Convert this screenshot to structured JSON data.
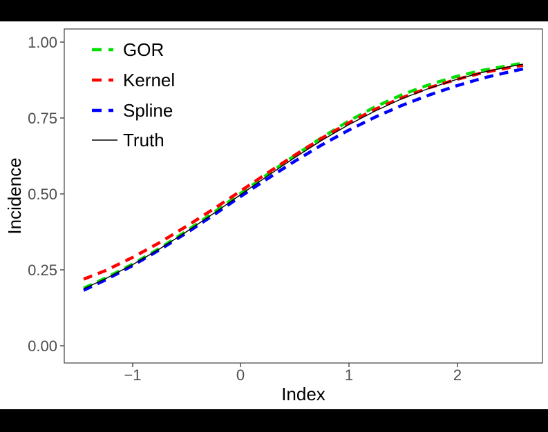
{
  "figure": {
    "background_color": "#ffffff",
    "letterbox_color": "#000000",
    "panel_border_color": "#404040",
    "tick_label_color": "#4d4d4d",
    "tick_mark_color": "#4d4d4d",
    "axis_title_color": "#000000"
  },
  "legend": {
    "position": "top-left-inside",
    "items": [
      {
        "label": "GOR",
        "color": "#00E000",
        "line_style": "dashed",
        "line_width": 4.5
      },
      {
        "label": "Kernel",
        "color": "#FF0000",
        "line_style": "dashed",
        "line_width": 4.5
      },
      {
        "label": "Spline",
        "color": "#0000FF",
        "line_style": "dashed",
        "line_width": 4.5
      },
      {
        "label": "Truth",
        "color": "#000000",
        "line_style": "solid",
        "line_width": 1.4
      }
    ]
  },
  "chart_data": {
    "type": "line",
    "title": "",
    "xlabel": "Index",
    "ylabel": "Incidence",
    "xlim": [
      -1.63,
      2.8
    ],
    "ylim": [
      -0.055,
      1.048
    ],
    "grid": "off",
    "legend_position": "top-left-inside",
    "x_ticks": [
      {
        "value": -1,
        "label": "−1"
      },
      {
        "value": 0,
        "label": "0"
      },
      {
        "value": 1,
        "label": "1"
      },
      {
        "value": 2,
        "label": "2"
      }
    ],
    "y_ticks": [
      {
        "value": 0.0,
        "label": "0.00"
      },
      {
        "value": 0.25,
        "label": "0.25"
      },
      {
        "value": 0.5,
        "label": "0.50"
      },
      {
        "value": 0.75,
        "label": "0.75"
      },
      {
        "value": 1.0,
        "label": "1.00"
      }
    ],
    "x": [
      -1.45,
      -1.25,
      -1.0,
      -0.75,
      -0.5,
      -0.25,
      0.0,
      0.25,
      0.5,
      0.75,
      1.0,
      1.25,
      1.5,
      1.75,
      2.0,
      2.25,
      2.5,
      2.62
    ],
    "series": [
      {
        "name": "GOR",
        "color": "#00E000",
        "dash": "dashed",
        "line_width": 4.5,
        "values": [
          0.192,
          0.225,
          0.271,
          0.323,
          0.38,
          0.441,
          0.504,
          0.567,
          0.629,
          0.688,
          0.743,
          0.791,
          0.831,
          0.864,
          0.891,
          0.912,
          0.928,
          0.935
        ]
      },
      {
        "name": "Kernel",
        "color": "#FF0000",
        "dash": "dashed",
        "line_width": 4.5,
        "values": [
          0.222,
          0.25,
          0.293,
          0.342,
          0.396,
          0.453,
          0.512,
          0.572,
          0.63,
          0.686,
          0.737,
          0.783,
          0.821,
          0.854,
          0.881,
          0.904,
          0.921,
          0.928
        ]
      },
      {
        "name": "Spline",
        "color": "#0000FF",
        "dash": "dashed",
        "line_width": 4.5,
        "values": [
          0.185,
          0.219,
          0.266,
          0.318,
          0.374,
          0.433,
          0.494,
          0.553,
          0.61,
          0.664,
          0.713,
          0.757,
          0.796,
          0.83,
          0.86,
          0.886,
          0.907,
          0.916
        ]
      },
      {
        "name": "Truth",
        "color": "#000000",
        "dash": "solid",
        "line_width": 1.4,
        "values": [
          0.19,
          0.223,
          0.269,
          0.321,
          0.378,
          0.438,
          0.5,
          0.562,
          0.622,
          0.679,
          0.731,
          0.777,
          0.818,
          0.852,
          0.881,
          0.905,
          0.924,
          0.932
        ]
      }
    ]
  }
}
